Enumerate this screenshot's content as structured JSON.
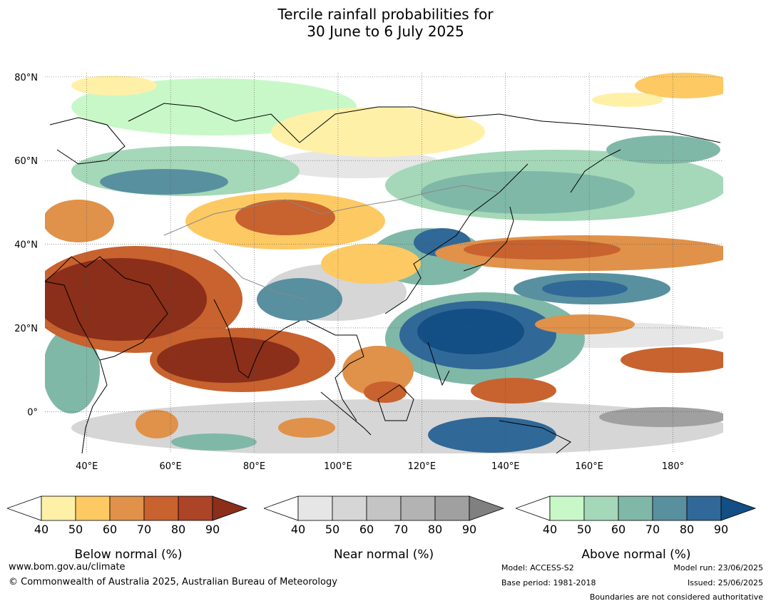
{
  "title": {
    "line1": "Tercile rainfall probabilities for",
    "line2": "30 June to 6 July 2025"
  },
  "map": {
    "lon_range": [
      30,
      192
    ],
    "lat_range": [
      -10,
      81
    ],
    "lon_ticks": [
      {
        "value": 40,
        "label": "40°E"
      },
      {
        "value": 60,
        "label": "60°E"
      },
      {
        "value": 80,
        "label": "80°E"
      },
      {
        "value": 100,
        "label": "100°E"
      },
      {
        "value": 120,
        "label": "120°E"
      },
      {
        "value": 140,
        "label": "140°E"
      },
      {
        "value": 160,
        "label": "160°E"
      },
      {
        "value": 180,
        "label": "180°"
      }
    ],
    "lat_ticks": [
      {
        "value": 80,
        "label": "80°N"
      },
      {
        "value": 60,
        "label": "60°N"
      },
      {
        "value": 40,
        "label": "40°N"
      },
      {
        "value": 20,
        "label": "20°N"
      },
      {
        "value": 0,
        "label": "0°"
      }
    ],
    "grid": true
  },
  "legends": [
    {
      "id": "below",
      "title": "Below normal (%)",
      "ticks": [
        "40",
        "50",
        "60",
        "70",
        "80",
        "90"
      ],
      "colors": [
        "#fff0a8",
        "#fdc963",
        "#e0914a",
        "#c8622e",
        "#ac4427"
      ],
      "extend_color": "#8b2e1a"
    },
    {
      "id": "near",
      "title": "Near normal (%)",
      "ticks": [
        "40",
        "50",
        "60",
        "70",
        "80",
        "90"
      ],
      "colors": [
        "#e6e6e6",
        "#d6d6d6",
        "#c4c4c4",
        "#b3b3b3",
        "#a0a0a0"
      ],
      "extend_color": "#808080"
    },
    {
      "id": "above",
      "title": "Above normal (%)",
      "ticks": [
        "40",
        "50",
        "60",
        "70",
        "80",
        "90"
      ],
      "colors": [
        "#c8f8c8",
        "#a4d8b8",
        "#80b8a8",
        "#5890a0",
        "#306898"
      ],
      "extend_color": "#134e85"
    }
  ],
  "footer": {
    "website": "www.bom.gov.au/climate",
    "copyright": "© Commonwealth of Australia 2025, Australian Bureau of Meteorology",
    "model": "Model: ACCESS-S2",
    "base_period": "Base period: 1981-2018",
    "model_run": "Model run: 23/06/2025",
    "issued": "Issued: 25/06/2025",
    "disclaimer": "Boundaries are not considered authoritative"
  }
}
